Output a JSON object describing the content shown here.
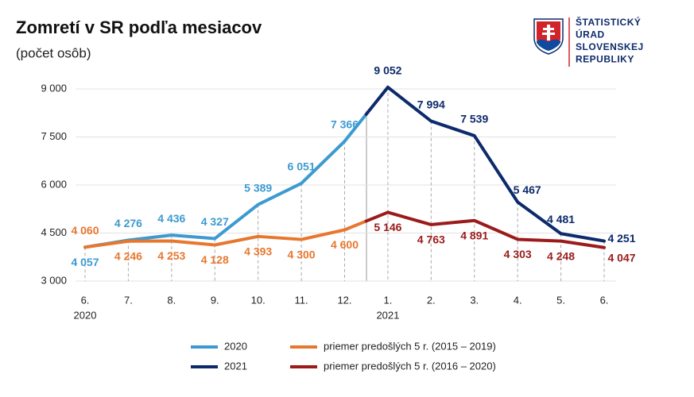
{
  "chart_data": {
    "type": "line",
    "title": "Zomretí v SR podľa mesiacov",
    "subtitle": "(počet osôb)",
    "logo_text": [
      "ŠTATISTICKÝ",
      "ÚRAD",
      "SLOVENSKEJ",
      "REPUBLIKY"
    ],
    "categories": [
      "6.",
      "7.",
      "8.",
      "9.",
      "10.",
      "11.",
      "12.",
      "1.",
      "2.",
      "3.",
      "4.",
      "5.",
      "6."
    ],
    "year_labels": [
      "2020",
      null,
      null,
      null,
      null,
      null,
      null,
      "2021",
      null,
      null,
      null,
      null,
      null
    ],
    "ylim": [
      3000,
      9000
    ],
    "yticks": [
      {
        "value": 3000,
        "label": "3 000"
      },
      {
        "value": 4500,
        "label": "4 500"
      },
      {
        "value": 6000,
        "label": "6 000"
      },
      {
        "value": 7500,
        "label": "7 500"
      },
      {
        "value": 9000,
        "label": "9 000"
      }
    ],
    "grid": true,
    "series": [
      {
        "name": "2020",
        "color": "#3d9ad1",
        "values": [
          4057,
          4276,
          4436,
          4327,
          5389,
          6051,
          7366,
          null,
          null,
          null,
          null,
          null,
          null
        ],
        "value_labels": [
          "4 057",
          "4 276",
          "4 436",
          "4 327",
          "5 389",
          "6 051",
          "7 366",
          null,
          null,
          null,
          null,
          null,
          null
        ]
      },
      {
        "name": "2021",
        "color": "#0d2a6b",
        "values": [
          null,
          null,
          null,
          null,
          null,
          null,
          null,
          9052,
          7994,
          7539,
          5467,
          4481,
          4251
        ],
        "value_labels": [
          null,
          null,
          null,
          null,
          null,
          null,
          null,
          "9 052",
          "7 994",
          "7 539",
          "5 467",
          "4 481",
          "4 251"
        ]
      },
      {
        "name": "priemer predošlých 5 r. (2015 – 2019)",
        "color": "#e8772e",
        "values": [
          4060,
          4246,
          4253,
          4128,
          4393,
          4300,
          4600,
          null,
          null,
          null,
          null,
          null,
          null
        ],
        "value_labels": [
          "4 060",
          "4 246",
          "4 253",
          "4 128",
          "4 393",
          "4 300",
          "4 600",
          null,
          null,
          null,
          null,
          null,
          null
        ]
      },
      {
        "name": "priemer predošlých 5 r. (2016 – 2020)",
        "color": "#9b1b1b",
        "values": [
          null,
          null,
          null,
          null,
          null,
          null,
          null,
          5146,
          4763,
          4891,
          4303,
          4248,
          4047
        ],
        "value_labels": [
          null,
          null,
          null,
          null,
          null,
          null,
          null,
          "5 146",
          "4 763",
          "4 891",
          "4 303",
          "4 248",
          "4 047"
        ]
      }
    ]
  }
}
